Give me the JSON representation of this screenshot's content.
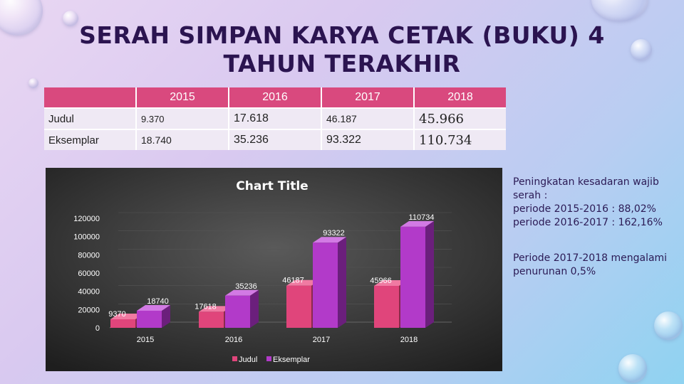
{
  "title": "SERAH SIMPAN KARYA CETAK  (BUKU) 4 TAHUN TERAKHIR",
  "table": {
    "headers": [
      "",
      "2015",
      "2016",
      "2017",
      "2018"
    ],
    "rows": [
      {
        "label": "Judul",
        "values": [
          "9.370",
          "17.618",
          "46.187",
          "45.966"
        ]
      },
      {
        "label": "Eksemplar",
        "values": [
          "18.740",
          "35.236",
          "93.322",
          "110.734"
        ]
      }
    ]
  },
  "chart_data": {
    "type": "bar",
    "title": "Chart Title",
    "categories": [
      "2015",
      "2016",
      "2017",
      "2018"
    ],
    "series": [
      {
        "name": "Judul",
        "values": [
          9370,
          17618,
          46187,
          45966
        ]
      },
      {
        "name": "Eksemplar",
        "values": [
          18740,
          35236,
          93322,
          110734
        ]
      }
    ],
    "ylim": [
      0,
      120000
    ],
    "yticks": [
      0,
      20000,
      40000,
      60000,
      80000,
      100000,
      120000
    ],
    "legend": "bottom",
    "colors": {
      "judul": "#e0457b",
      "eksemplar": "#b23ac9"
    }
  },
  "notes": {
    "line1": "Peningkatan kesadaran wajib",
    "line2": "serah :",
    "line3": "periode 2015-2016 : 88,02%",
    "line4": "periode 2016-2017 : 162,16%",
    "line5": "Periode 2017-2018 mengalami",
    "line6": "penurunan 0,5%"
  }
}
